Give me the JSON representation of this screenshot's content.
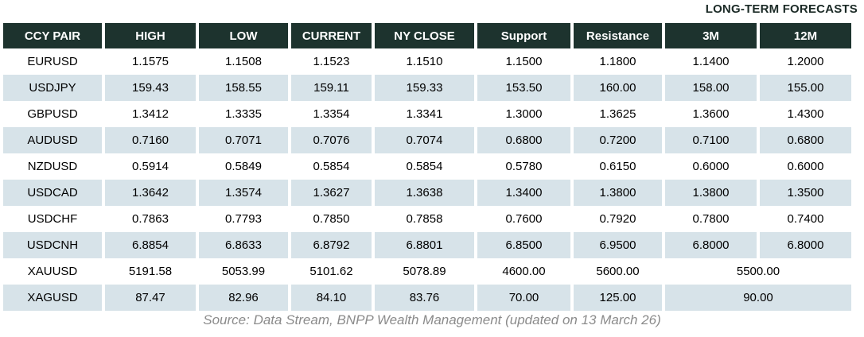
{
  "forecast_banner": "LONG-TERM FORECASTS",
  "source_note": "Source: Data Stream, BNPP Wealth Management (updated on 13 March 26)",
  "colors": {
    "header_bg": "#1d332e",
    "header_text": "#ffffff",
    "alt_row_bg": "#d7e3e9",
    "body_text": "#000000",
    "banner_text": "#1b2a26",
    "source_text": "#8b8b8b"
  },
  "chart_data": {
    "type": "table",
    "title": "LONG-TERM FORECASTS",
    "columns": [
      "CCY PAIR",
      "HIGH",
      "LOW",
      "CURRENT",
      "NY CLOSE",
      "Support",
      "Resistance",
      "3M",
      "12M"
    ],
    "long_term_forecast_columns": [
      "3M",
      "12M"
    ],
    "rows": [
      {
        "cells": [
          "EURUSD",
          "1.1575",
          "1.1508",
          "1.1523",
          "1.1510",
          "1.1500",
          "1.1800",
          "1.1400",
          "1.2000"
        ],
        "merged_last": false
      },
      {
        "cells": [
          "USDJPY",
          "159.43",
          "158.55",
          "159.11",
          "159.33",
          "153.50",
          "160.00",
          "158.00",
          "155.00"
        ],
        "merged_last": false
      },
      {
        "cells": [
          "GBPUSD",
          "1.3412",
          "1.3335",
          "1.3354",
          "1.3341",
          "1.3000",
          "1.3625",
          "1.3600",
          "1.4300"
        ],
        "merged_last": false
      },
      {
        "cells": [
          "AUDUSD",
          "0.7160",
          "0.7071",
          "0.7076",
          "0.7074",
          "0.6800",
          "0.7200",
          "0.7100",
          "0.6800"
        ],
        "merged_last": false
      },
      {
        "cells": [
          "NZDUSD",
          "0.5914",
          "0.5849",
          "0.5854",
          "0.5854",
          "0.5780",
          "0.6150",
          "0.6000",
          "0.6000"
        ],
        "merged_last": false
      },
      {
        "cells": [
          "USDCAD",
          "1.3642",
          "1.3574",
          "1.3627",
          "1.3638",
          "1.3400",
          "1.3800",
          "1.3800",
          "1.3500"
        ],
        "merged_last": false
      },
      {
        "cells": [
          "USDCHF",
          "0.7863",
          "0.7793",
          "0.7850",
          "0.7858",
          "0.7600",
          "0.7920",
          "0.7800",
          "0.7400"
        ],
        "merged_last": false
      },
      {
        "cells": [
          "USDCNH",
          "6.8854",
          "6.8633",
          "6.8792",
          "6.8801",
          "6.8500",
          "6.9500",
          "6.8000",
          "6.8000"
        ],
        "merged_last": false
      },
      {
        "cells": [
          "XAUUSD",
          "5191.58",
          "5053.99",
          "5101.62",
          "5078.89",
          "4600.00",
          "5600.00",
          "5500.00"
        ],
        "merged_last": true
      },
      {
        "cells": [
          "XAGUSD",
          "87.47",
          "82.96",
          "84.10",
          "83.76",
          "70.00",
          "125.00",
          "90.00"
        ],
        "merged_last": true
      }
    ],
    "source": "Source: Data Stream, BNPP Wealth Management (updated on 13 March 26)"
  }
}
